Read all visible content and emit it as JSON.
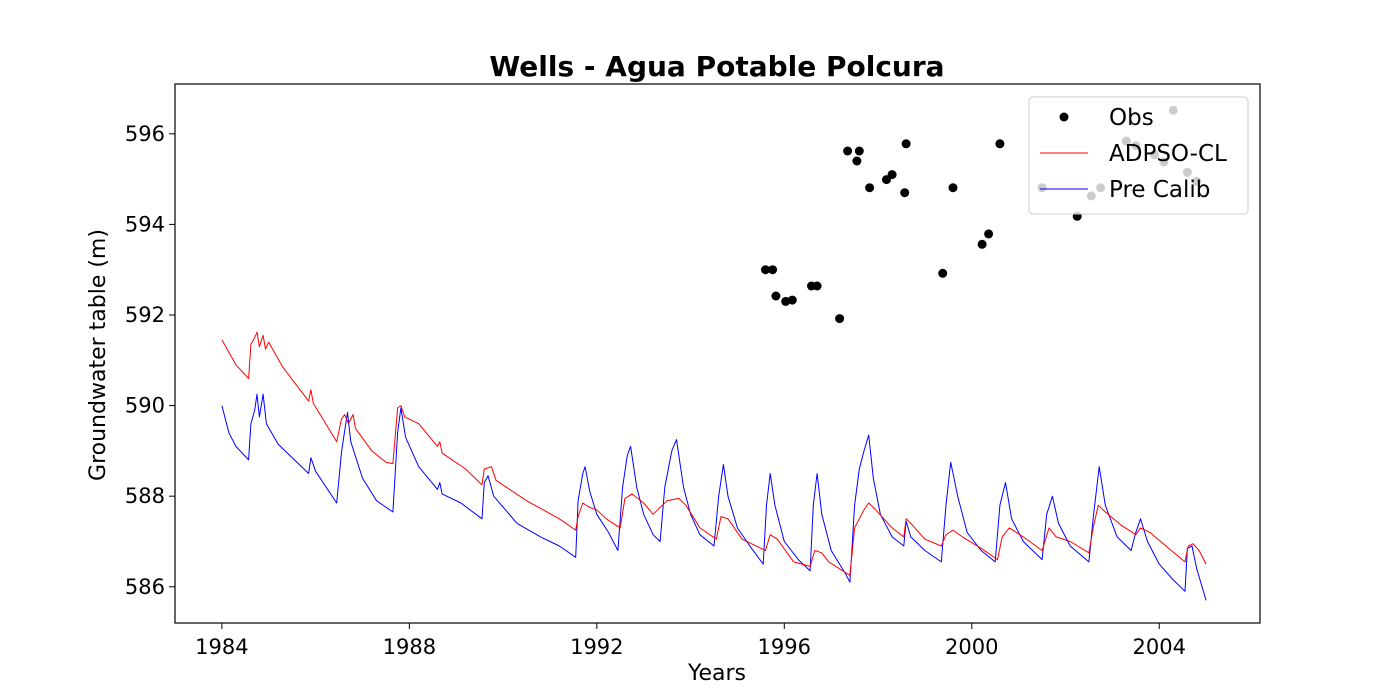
{
  "chart_data": {
    "type": "line",
    "title": "Wells - Agua Potable Polcura",
    "xlabel": "Years",
    "ylabel": "Groundwater table (m)",
    "xlim": [
      1983.0,
      2006.15
    ],
    "ylim": [
      585.2,
      597.1
    ],
    "xticks": [
      "1984",
      "1988",
      "1992",
      "1996",
      "2000",
      "2004"
    ],
    "yticks": [
      "586",
      "588",
      "590",
      "592",
      "594",
      "596"
    ],
    "legend_position": "upper right",
    "grid": false,
    "series": [
      {
        "name": "Obs",
        "kind": "markers",
        "color": "#000000",
        "points": [
          [
            1995.6,
            593.0
          ],
          [
            1995.75,
            593.0
          ],
          [
            1995.82,
            592.42
          ],
          [
            1996.03,
            592.3
          ],
          [
            1996.17,
            592.33
          ],
          [
            1996.58,
            592.64
          ],
          [
            1996.7,
            592.64
          ],
          [
            1997.18,
            591.92
          ],
          [
            1997.35,
            595.62
          ],
          [
            1997.55,
            595.4
          ],
          [
            1997.6,
            595.62
          ],
          [
            1997.82,
            594.81
          ],
          [
            1998.18,
            594.99
          ],
          [
            1998.3,
            595.1
          ],
          [
            1998.57,
            594.7
          ],
          [
            1998.6,
            595.78
          ],
          [
            1999.38,
            592.92
          ],
          [
            1999.6,
            594.81
          ],
          [
            2000.22,
            593.56
          ],
          [
            2000.36,
            593.79
          ],
          [
            2000.6,
            595.78
          ],
          [
            2001.5,
            594.81
          ],
          [
            2002.25,
            594.18
          ],
          [
            2002.55,
            594.63
          ],
          [
            2002.75,
            594.81
          ],
          [
            2003.3,
            595.84
          ],
          [
            2003.5,
            595.74
          ],
          [
            2003.9,
            595.54
          ],
          [
            2004.1,
            595.38
          ],
          [
            2004.3,
            596.52
          ],
          [
            2004.6,
            595.15
          ],
          [
            2004.8,
            594.95
          ]
        ]
      },
      {
        "name": "ADPSO-CL",
        "kind": "line",
        "color": "#ff0000",
        "points": [
          [
            1984.0,
            591.45
          ],
          [
            1984.3,
            590.9
          ],
          [
            1984.57,
            590.6
          ],
          [
            1984.62,
            591.35
          ],
          [
            1984.7,
            591.5
          ],
          [
            1984.75,
            591.62
          ],
          [
            1984.8,
            591.3
          ],
          [
            1984.88,
            591.55
          ],
          [
            1984.93,
            591.25
          ],
          [
            1985.0,
            591.4
          ],
          [
            1985.3,
            590.85
          ],
          [
            1985.85,
            590.1
          ],
          [
            1985.9,
            590.35
          ],
          [
            1985.95,
            590.05
          ],
          [
            1986.45,
            589.2
          ],
          [
            1986.55,
            589.7
          ],
          [
            1986.62,
            589.8
          ],
          [
            1986.7,
            589.6
          ],
          [
            1986.8,
            589.8
          ],
          [
            1986.85,
            589.5
          ],
          [
            1987.2,
            589.0
          ],
          [
            1987.5,
            588.75
          ],
          [
            1987.65,
            588.72
          ],
          [
            1987.75,
            589.95
          ],
          [
            1987.82,
            590.0
          ],
          [
            1987.9,
            589.75
          ],
          [
            1988.2,
            589.6
          ],
          [
            1988.6,
            589.1
          ],
          [
            1988.65,
            589.2
          ],
          [
            1988.7,
            588.95
          ],
          [
            1989.2,
            588.6
          ],
          [
            1989.55,
            588.25
          ],
          [
            1989.6,
            588.6
          ],
          [
            1989.75,
            588.65
          ],
          [
            1989.85,
            588.35
          ],
          [
            1990.5,
            587.9
          ],
          [
            1991.2,
            587.5
          ],
          [
            1991.55,
            587.25
          ],
          [
            1991.6,
            587.55
          ],
          [
            1991.7,
            587.85
          ],
          [
            1991.85,
            587.75
          ],
          [
            1992.0,
            587.7
          ],
          [
            1992.2,
            587.5
          ],
          [
            1992.5,
            587.3
          ],
          [
            1992.6,
            587.95
          ],
          [
            1992.75,
            588.05
          ],
          [
            1993.0,
            587.85
          ],
          [
            1993.2,
            587.6
          ],
          [
            1993.5,
            587.9
          ],
          [
            1993.75,
            587.95
          ],
          [
            1993.9,
            587.8
          ],
          [
            1994.2,
            587.3
          ],
          [
            1994.55,
            587.05
          ],
          [
            1994.65,
            587.55
          ],
          [
            1994.8,
            587.5
          ],
          [
            1995.1,
            587.05
          ],
          [
            1995.6,
            586.8
          ],
          [
            1995.7,
            587.15
          ],
          [
            1995.85,
            587.05
          ],
          [
            1996.2,
            586.55
          ],
          [
            1996.55,
            586.45
          ],
          [
            1996.65,
            586.8
          ],
          [
            1996.8,
            586.75
          ],
          [
            1996.95,
            586.55
          ],
          [
            1997.4,
            586.25
          ],
          [
            1997.5,
            587.3
          ],
          [
            1997.7,
            587.7
          ],
          [
            1997.8,
            587.85
          ],
          [
            1997.95,
            587.7
          ],
          [
            1998.3,
            587.3
          ],
          [
            1998.55,
            587.1
          ],
          [
            1998.6,
            587.5
          ],
          [
            1998.7,
            587.4
          ],
          [
            1999.0,
            587.05
          ],
          [
            1999.35,
            586.9
          ],
          [
            1999.45,
            587.15
          ],
          [
            1999.6,
            587.25
          ],
          [
            1999.8,
            587.1
          ],
          [
            2000.2,
            586.85
          ],
          [
            2000.55,
            586.6
          ],
          [
            2000.65,
            587.1
          ],
          [
            2000.8,
            587.3
          ],
          [
            2001.1,
            587.1
          ],
          [
            2001.5,
            586.8
          ],
          [
            2001.65,
            587.3
          ],
          [
            2001.8,
            587.1
          ],
          [
            2002.1,
            587.0
          ],
          [
            2002.5,
            586.75
          ],
          [
            2002.6,
            587.35
          ],
          [
            2002.7,
            587.8
          ],
          [
            2002.85,
            587.65
          ],
          [
            2003.2,
            587.35
          ],
          [
            2003.5,
            587.15
          ],
          [
            2003.6,
            587.3
          ],
          [
            2003.8,
            587.2
          ],
          [
            2004.2,
            586.85
          ],
          [
            2004.55,
            586.55
          ],
          [
            2004.62,
            586.9
          ],
          [
            2004.72,
            586.95
          ],
          [
            2004.85,
            586.8
          ],
          [
            2005.0,
            586.5
          ]
        ]
      },
      {
        "name": "Pre Calib",
        "kind": "line",
        "color": "#0000ff",
        "points": [
          [
            1984.0,
            590.0
          ],
          [
            1984.15,
            589.4
          ],
          [
            1984.3,
            589.1
          ],
          [
            1984.57,
            588.8
          ],
          [
            1984.62,
            589.6
          ],
          [
            1984.7,
            589.9
          ],
          [
            1984.75,
            590.25
          ],
          [
            1984.8,
            589.75
          ],
          [
            1984.88,
            590.25
          ],
          [
            1984.95,
            589.6
          ],
          [
            1985.2,
            589.15
          ],
          [
            1985.85,
            588.5
          ],
          [
            1985.9,
            588.85
          ],
          [
            1986.0,
            588.55
          ],
          [
            1986.45,
            587.85
          ],
          [
            1986.55,
            588.95
          ],
          [
            1986.6,
            589.3
          ],
          [
            1986.68,
            589.85
          ],
          [
            1986.75,
            589.2
          ],
          [
            1987.0,
            588.4
          ],
          [
            1987.3,
            587.9
          ],
          [
            1987.65,
            587.65
          ],
          [
            1987.75,
            589.4
          ],
          [
            1987.82,
            589.95
          ],
          [
            1987.92,
            589.3
          ],
          [
            1988.2,
            588.65
          ],
          [
            1988.6,
            588.15
          ],
          [
            1988.65,
            588.3
          ],
          [
            1988.7,
            588.05
          ],
          [
            1989.1,
            587.85
          ],
          [
            1989.55,
            587.5
          ],
          [
            1989.6,
            588.3
          ],
          [
            1989.68,
            588.45
          ],
          [
            1989.8,
            588.0
          ],
          [
            1990.3,
            587.4
          ],
          [
            1990.8,
            587.1
          ],
          [
            1991.2,
            586.9
          ],
          [
            1991.55,
            586.65
          ],
          [
            1991.6,
            587.9
          ],
          [
            1991.7,
            588.5
          ],
          [
            1991.75,
            588.65
          ],
          [
            1991.85,
            588.1
          ],
          [
            1992.0,
            587.6
          ],
          [
            1992.25,
            587.2
          ],
          [
            1992.45,
            586.8
          ],
          [
            1992.55,
            588.2
          ],
          [
            1992.65,
            588.9
          ],
          [
            1992.72,
            589.1
          ],
          [
            1992.85,
            588.2
          ],
          [
            1993.0,
            587.6
          ],
          [
            1993.2,
            587.15
          ],
          [
            1993.35,
            587.0
          ],
          [
            1993.45,
            588.2
          ],
          [
            1993.6,
            589.0
          ],
          [
            1993.7,
            589.25
          ],
          [
            1993.85,
            588.2
          ],
          [
            1994.0,
            587.6
          ],
          [
            1994.2,
            587.15
          ],
          [
            1994.5,
            586.9
          ],
          [
            1994.6,
            588.0
          ],
          [
            1994.7,
            588.7
          ],
          [
            1994.8,
            588.0
          ],
          [
            1995.0,
            587.3
          ],
          [
            1995.3,
            586.85
          ],
          [
            1995.55,
            586.5
          ],
          [
            1995.62,
            587.8
          ],
          [
            1995.7,
            588.5
          ],
          [
            1995.8,
            587.8
          ],
          [
            1996.0,
            587.0
          ],
          [
            1996.3,
            586.6
          ],
          [
            1996.55,
            586.35
          ],
          [
            1996.62,
            587.8
          ],
          [
            1996.7,
            588.5
          ],
          [
            1996.8,
            587.6
          ],
          [
            1997.0,
            586.8
          ],
          [
            1997.3,
            586.3
          ],
          [
            1997.4,
            586.1
          ],
          [
            1997.5,
            587.8
          ],
          [
            1997.6,
            588.6
          ],
          [
            1997.7,
            589.0
          ],
          [
            1997.8,
            589.35
          ],
          [
            1997.9,
            588.4
          ],
          [
            1998.05,
            587.6
          ],
          [
            1998.3,
            587.1
          ],
          [
            1998.55,
            586.9
          ],
          [
            1998.6,
            587.45
          ],
          [
            1998.7,
            587.1
          ],
          [
            1999.0,
            586.8
          ],
          [
            1999.35,
            586.55
          ],
          [
            1999.45,
            587.8
          ],
          [
            1999.55,
            588.75
          ],
          [
            1999.7,
            588.0
          ],
          [
            1999.9,
            587.2
          ],
          [
            2000.2,
            586.8
          ],
          [
            2000.5,
            586.55
          ],
          [
            2000.6,
            587.8
          ],
          [
            2000.72,
            588.3
          ],
          [
            2000.85,
            587.5
          ],
          [
            2001.1,
            587.0
          ],
          [
            2001.5,
            586.6
          ],
          [
            2001.6,
            587.6
          ],
          [
            2001.72,
            588.0
          ],
          [
            2001.85,
            587.4
          ],
          [
            2002.1,
            586.9
          ],
          [
            2002.5,
            586.55
          ],
          [
            2002.6,
            587.6
          ],
          [
            2002.72,
            588.65
          ],
          [
            2002.85,
            587.8
          ],
          [
            2003.1,
            587.1
          ],
          [
            2003.4,
            586.8
          ],
          [
            2003.5,
            587.2
          ],
          [
            2003.6,
            587.5
          ],
          [
            2003.75,
            587.0
          ],
          [
            2004.0,
            586.5
          ],
          [
            2004.3,
            586.15
          ],
          [
            2004.55,
            585.9
          ],
          [
            2004.6,
            586.85
          ],
          [
            2004.7,
            586.9
          ],
          [
            2004.8,
            586.4
          ],
          [
            2005.0,
            585.7
          ]
        ]
      }
    ]
  }
}
